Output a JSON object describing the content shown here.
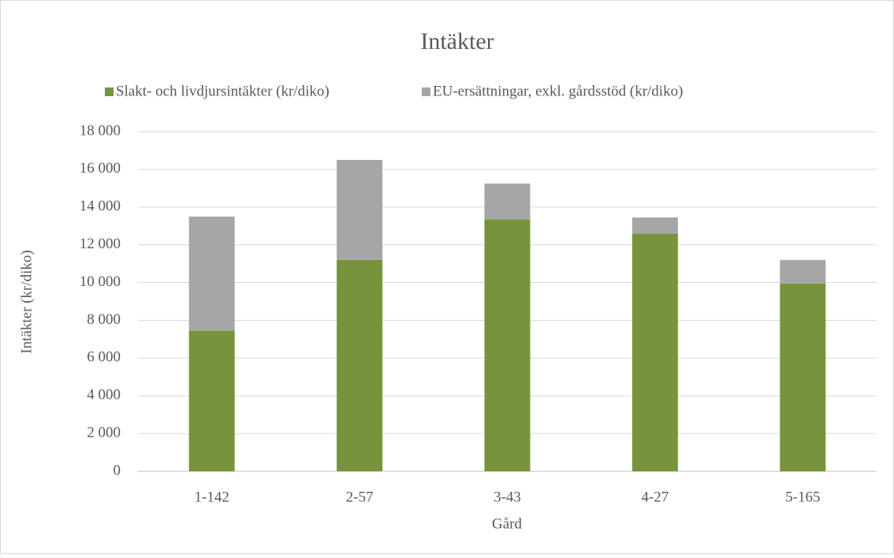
{
  "chart_data": {
    "type": "stacked_bar",
    "title": "Intäkter",
    "x_label": "Gård",
    "y_label": "Intäkter (kr/diko)",
    "categories": [
      "1-142",
      "2-57",
      "3-43",
      "4-27",
      "5-165"
    ],
    "series": [
      {
        "name": "Slakt- och livdjursintäkter (kr/diko)",
        "color": "#77933c",
        "values": [
          7450,
          11200,
          13350,
          12600,
          9950
        ]
      },
      {
        "name": "EU-ersättningar,  exkl. gårdsstöd (kr/diko)",
        "color": "#a6a6a6",
        "values": [
          6050,
          5300,
          1900,
          850,
          1250
        ]
      }
    ],
    "ylim": [
      0,
      18000
    ],
    "yticks": [
      0,
      {
        "value": 2000,
        "label": "2 000"
      },
      {
        "value": 4000,
        "label": "4 000"
      },
      {
        "value": 6000,
        "label": "6 000"
      },
      {
        "value": 8000,
        "label": "8 000"
      },
      {
        "value": 10000,
        "label": "10 000"
      },
      {
        "value": 12000,
        "label": "12 000"
      },
      {
        "value": 14000,
        "label": "14 000"
      },
      {
        "value": 16000,
        "label": "16 000"
      },
      {
        "value": 18000,
        "label": "18 000"
      }
    ],
    "grid": true,
    "legend": "top"
  }
}
